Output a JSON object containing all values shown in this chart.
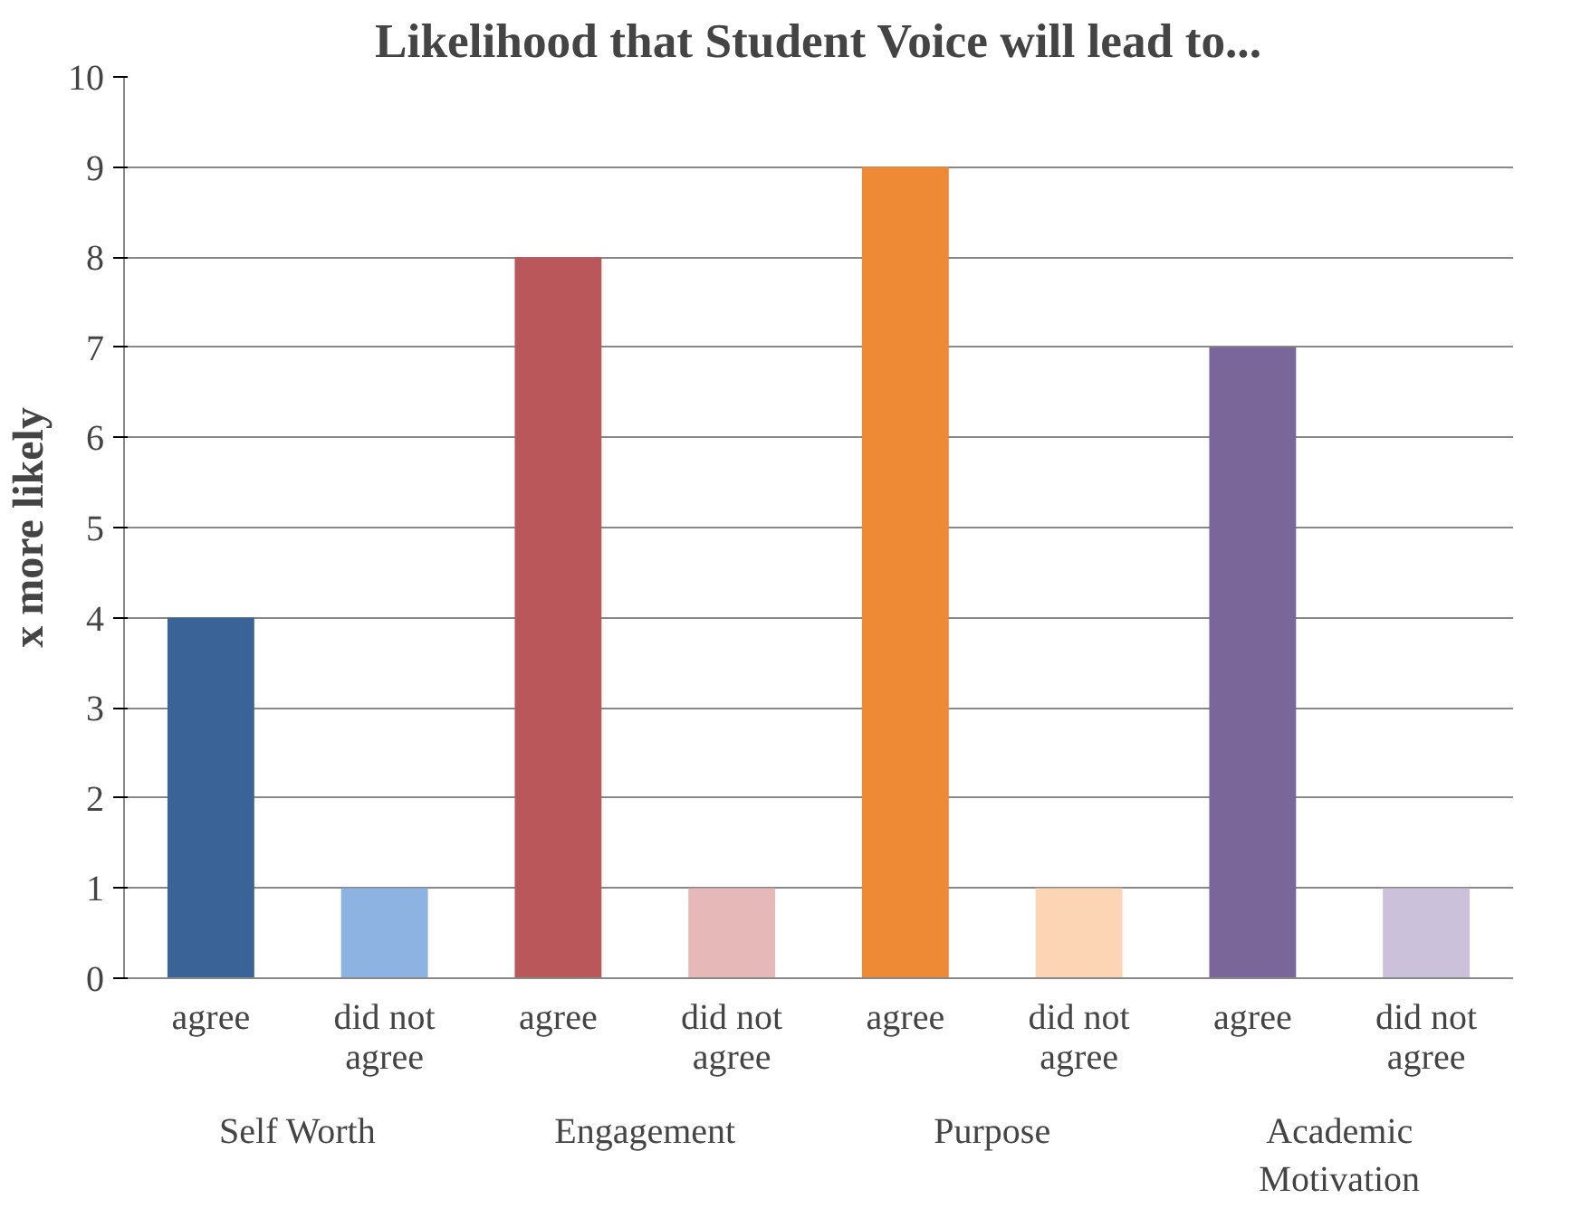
{
  "chart_data": {
    "type": "bar",
    "title": "Likelihood that Student Voice will lead to...",
    "ylabel": "x more likely",
    "categories": [
      "agree",
      "did not agree",
      "agree",
      "did not agree",
      "agree",
      "did not agree",
      "agree",
      "did not agree"
    ],
    "values": [
      4,
      1,
      8,
      1,
      9,
      1,
      7,
      1
    ],
    "colors": [
      "#3a6497",
      "#8db3e2",
      "#b9575a",
      "#e6b9b8",
      "#ee8a35",
      "#fcd5b5",
      "#7b6699",
      "#ccc1da"
    ],
    "annotations": [
      "Self Worth",
      "Engagement",
      "Purpose",
      "Academic Motivation"
    ],
    "ylim": [
      0,
      10
    ],
    "yticks": [
      0,
      1,
      2,
      3,
      4,
      5,
      6,
      7,
      8,
      9,
      10
    ],
    "grid": "y"
  }
}
